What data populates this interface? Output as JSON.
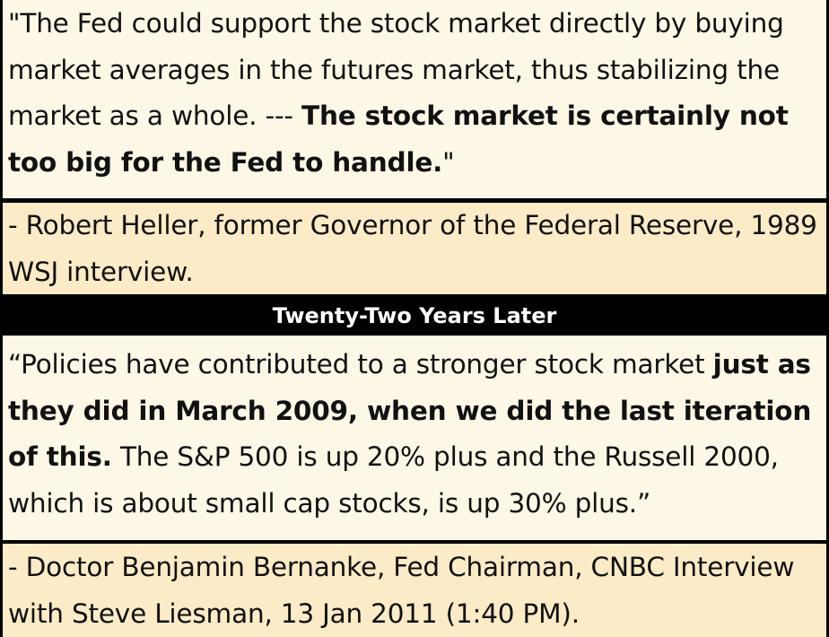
{
  "quote1": {
    "part1": "\"The Fed could support the stock market directly by buying market averages in the futures market, thus stabilizing the market as a whole. --- ",
    "bold": "The stock market is certainly not too big for the Fed to handle.",
    "part2": "\""
  },
  "attribution1": "- Robert Heller, former Governor of the Federal Reserve, 1989 WSJ interview.",
  "banner": "Twenty-Two Years Later",
  "quote2": {
    "part1": "“Policies have contributed to a stronger stock market ",
    "bold": "just as they did in March 2009, when we did the last iteration of this.",
    "part2": " The S&P 500 is up 20% plus and the Russell 2000, which is about small cap stocks, is up 30% plus.”"
  },
  "attribution2": "- Doctor Benjamin Bernanke, Fed Chairman, CNBC Interview with Steve Liesman, 13 Jan 2011 (1:40 PM)."
}
